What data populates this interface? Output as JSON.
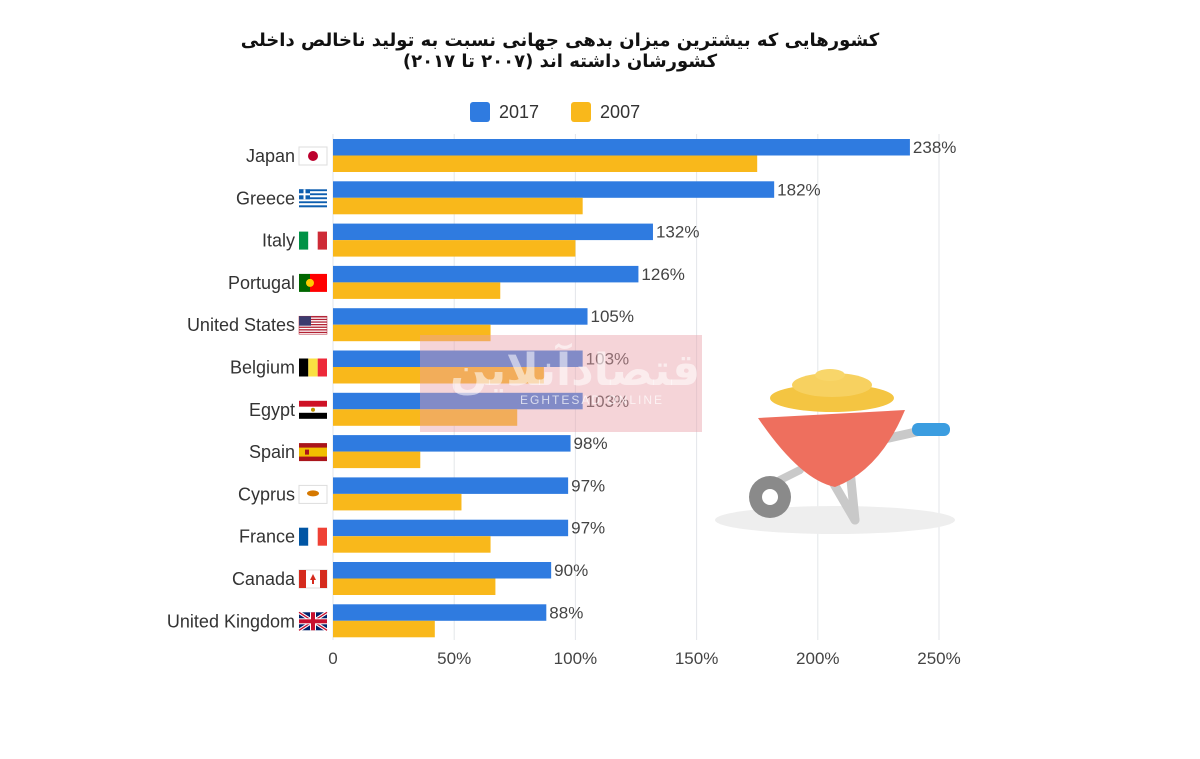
{
  "title": "کشورهایی که بیشترین میزان بدهی جهانی نسبت به تولید ناخالص داخلی کشورشان داشته اند (۲۰۰۷ تا ۲۰۱۷)",
  "watermark": {
    "text": "اقتصادآنلاین",
    "sub": "EGHTESAD ONLINE"
  },
  "colors": {
    "s2017": "#2f7be0",
    "s2007": "#f9b81b",
    "grid": "#e3e6ea",
    "axis_text": "#444444"
  },
  "chart_data": {
    "type": "bar",
    "orientation": "horizontal",
    "categories": [
      "Japan",
      "Greece",
      "Italy",
      "Portugal",
      "United States",
      "Belgium",
      "Egypt",
      "Spain",
      "Cyprus",
      "France",
      "Canada",
      "United Kingdom"
    ],
    "flags": [
      "japan-flag",
      "greece-flag",
      "italy-flag",
      "portugal-flag",
      "united-states-flag",
      "belgium-flag",
      "egypt-flag",
      "spain-flag",
      "cyprus-flag",
      "france-flag",
      "canada-flag",
      "united-kingdom-flag"
    ],
    "series": [
      {
        "name": "2017",
        "values": [
          238,
          182,
          132,
          126,
          105,
          103,
          103,
          98,
          97,
          97,
          90,
          88
        ],
        "labels": [
          "238%",
          "182%",
          "132%",
          "126%",
          "105%",
          "103%",
          "103%",
          "98%",
          "97%",
          "97%",
          "90%",
          "88%"
        ]
      },
      {
        "name": "2007",
        "values": [
          175,
          103,
          100,
          69,
          65,
          87,
          76,
          36,
          53,
          65,
          67,
          42
        ]
      }
    ],
    "xlim": [
      0,
      250
    ],
    "xticks": [
      0,
      50,
      100,
      150,
      200,
      250
    ],
    "xtick_labels": [
      "0",
      "50%",
      "100%",
      "150%",
      "200%",
      "250%"
    ],
    "grid": true,
    "legend": "top-center"
  }
}
